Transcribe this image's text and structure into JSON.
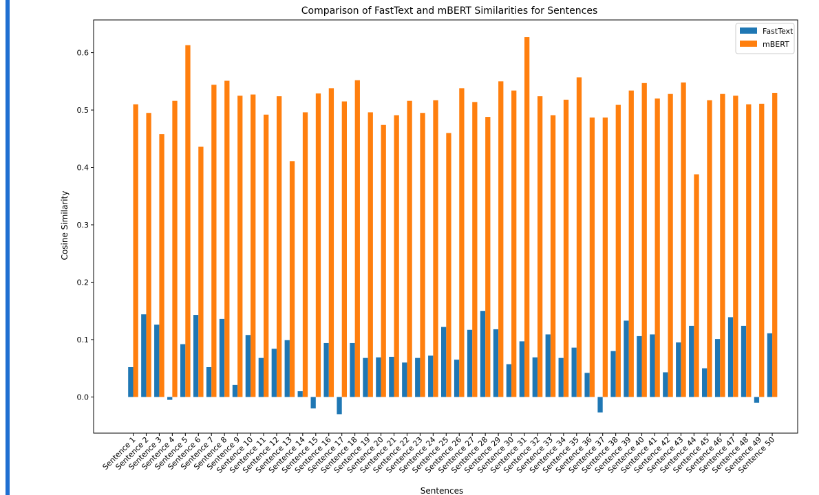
{
  "colors": {
    "fasttext": "#1f77b4",
    "mbert": "#ff7f0e",
    "accent_bar": "#1f6fd1"
  },
  "chart_data": {
    "type": "bar",
    "title": "Comparison of FastText and mBERT Similarities for Sentences",
    "xlabel": "Sentences",
    "ylabel": "Cosine Similarity",
    "ylim": [
      -0.063,
      0.657
    ],
    "yticks": [
      0.0,
      0.1,
      0.2,
      0.3,
      0.4,
      0.5,
      0.6
    ],
    "ytick_labels": [
      "0.0",
      "0.1",
      "0.2",
      "0.3",
      "0.4",
      "0.5",
      "0.6"
    ],
    "grid": false,
    "legend_position": "top-right",
    "categories": [
      "Sentence 1",
      "Sentence 2",
      "Sentence 3",
      "Sentence 4",
      "Sentence 5",
      "Sentence 6",
      "Sentence 7",
      "Sentence 8",
      "Sentence 9",
      "Sentence 10",
      "Sentence 11",
      "Sentence 12",
      "Sentence 13",
      "Sentence 14",
      "Sentence 15",
      "Sentence 16",
      "Sentence 17",
      "Sentence 18",
      "Sentence 19",
      "Sentence 20",
      "Sentence 21",
      "Sentence 22",
      "Sentence 23",
      "Sentence 24",
      "Sentence 25",
      "Sentence 26",
      "Sentence 27",
      "Sentence 28",
      "Sentence 29",
      "Sentence 30",
      "Sentence 31",
      "Sentence 32",
      "Sentence 33",
      "Sentence 34",
      "Sentence 35",
      "Sentence 36",
      "Sentence 37",
      "Sentence 38",
      "Sentence 39",
      "Sentence 40",
      "Sentence 41",
      "Sentence 42",
      "Sentence 43",
      "Sentence 44",
      "Sentence 45",
      "Sentence 46",
      "Sentence 47",
      "Sentence 48",
      "Sentence 49",
      "Sentence 50"
    ],
    "series": [
      {
        "name": "FastText",
        "color": "#1f77b4",
        "values": [
          0.052,
          0.144,
          0.126,
          -0.005,
          0.092,
          0.143,
          0.052,
          0.136,
          0.021,
          0.108,
          0.068,
          0.084,
          0.099,
          0.01,
          -0.02,
          0.094,
          -0.03,
          0.094,
          0.068,
          0.069,
          0.07,
          0.06,
          0.068,
          0.072,
          0.122,
          0.065,
          0.117,
          0.15,
          0.118,
          0.057,
          0.097,
          0.069,
          0.109,
          0.068,
          0.086,
          0.042,
          -0.027,
          0.08,
          0.133,
          0.106,
          0.109,
          0.043,
          0.095,
          0.124,
          0.05,
          0.101,
          0.139,
          0.124,
          -0.01,
          0.111
        ]
      },
      {
        "name": "mBERT",
        "color": "#ff7f0e",
        "values": [
          0.51,
          0.495,
          0.458,
          0.516,
          0.613,
          0.436,
          0.544,
          0.551,
          0.525,
          0.527,
          0.492,
          0.524,
          0.411,
          0.496,
          0.529,
          0.538,
          0.515,
          0.552,
          0.496,
          0.474,
          0.491,
          0.516,
          0.495,
          0.517,
          0.46,
          0.538,
          0.514,
          0.488,
          0.55,
          0.534,
          0.627,
          0.524,
          0.491,
          0.518,
          0.557,
          0.487,
          0.487,
          0.509,
          0.534,
          0.547,
          0.52,
          0.528,
          0.548,
          0.388,
          0.517,
          0.528,
          0.525,
          0.51,
          0.511,
          0.53
        ]
      }
    ]
  }
}
